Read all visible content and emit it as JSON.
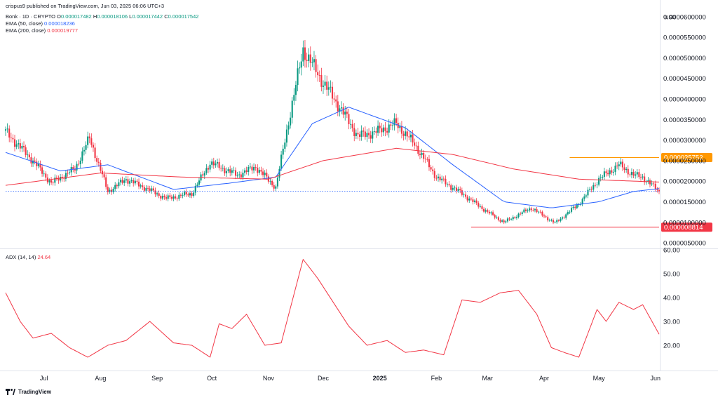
{
  "header": {
    "published": "crispus9 published on TradingView.com, Jun 03, 2025 06:06 UTC+3",
    "symbol": "Bonk · 1D · CRYPTO",
    "open_label": "O",
    "open": "0.000017482",
    "high_label": "H",
    "high": "0.000018106",
    "low_label": "L",
    "low": "0.000017442",
    "close_label": "C",
    "close": "0.000017542",
    "ema50_label": "EMA (50, close)",
    "ema50_value": "0.000018236",
    "ema200_label": "EMA (200, close)",
    "ema200_value": "0.000019777",
    "adx_label": "ADX (14, 14)",
    "adx_value": "24.64",
    "currency": "USD"
  },
  "footer": {
    "logo_text": "TradingView"
  },
  "colors": {
    "up": "#089981",
    "down": "#f23645",
    "ema50": "#2962ff",
    "ema200": "#f23645",
    "adx": "#f23645",
    "resistance": "#ff9800",
    "support": "#f23645",
    "last_price": "#2962ff"
  },
  "chart_data": [
    {
      "type": "candlestick",
      "title": "Bonk · 1D · CRYPTO",
      "ylabel": "USD",
      "ylim": [
        4e-06,
        6.15e-05
      ],
      "yticks": [
        "0.0000050000",
        "0.0000100000",
        "0.0000150000",
        "0.0000200000",
        "0.0000250000",
        "0.0000300000",
        "0.0000350000",
        "0.0000400000",
        "0.0000450000",
        "0.0000500000",
        "0.0000550000",
        "0.0000600000"
      ],
      "xticks": [
        {
          "label": "Jul",
          "date": "2024-07-01"
        },
        {
          "label": "Aug",
          "date": "2024-08-01"
        },
        {
          "label": "Sep",
          "date": "2024-09-01"
        },
        {
          "label": "Oct",
          "date": "2024-10-01"
        },
        {
          "label": "Nov",
          "date": "2024-11-01"
        },
        {
          "label": "Dec",
          "date": "2024-12-01"
        },
        {
          "label": "2025",
          "date": "2025-01-01"
        },
        {
          "label": "Feb",
          "date": "2025-02-01"
        },
        {
          "label": "Mar",
          "date": "2025-03-01"
        },
        {
          "label": "Apr",
          "date": "2025-04-01"
        },
        {
          "label": "May",
          "date": "2025-05-01"
        },
        {
          "label": "Jun",
          "date": "2025-06-01"
        }
      ],
      "price_path": [
        [
          "2024-06-10",
          3.2e-05
        ],
        [
          "2024-06-25",
          2.5e-05
        ],
        [
          "2024-07-05",
          1.95e-05
        ],
        [
          "2024-07-18",
          2.3e-05
        ],
        [
          "2024-07-26",
          3.05e-05
        ],
        [
          "2024-08-05",
          1.75e-05
        ],
        [
          "2024-08-15",
          2.05e-05
        ],
        [
          "2024-08-25",
          1.85e-05
        ],
        [
          "2024-09-06",
          1.58e-05
        ],
        [
          "2024-09-20",
          1.7e-05
        ],
        [
          "2024-09-30",
          2.45e-05
        ],
        [
          "2024-10-15",
          2.15e-05
        ],
        [
          "2024-10-25",
          2.35e-05
        ],
        [
          "2024-11-05",
          1.85e-05
        ],
        [
          "2024-11-12",
          3.45e-05
        ],
        [
          "2024-11-20",
          5.2e-05
        ],
        [
          "2024-12-01",
          4.4e-05
        ],
        [
          "2024-12-10",
          3.8e-05
        ],
        [
          "2024-12-20",
          3.1e-05
        ],
        [
          "2024-12-30",
          3.2e-05
        ],
        [
          "2025-01-10",
          3.4e-05
        ],
        [
          "2025-01-20",
          2.9e-05
        ],
        [
          "2025-02-01",
          2.1e-05
        ],
        [
          "2025-02-15",
          1.7e-05
        ],
        [
          "2025-03-01",
          1.25e-05
        ],
        [
          "2025-03-10",
          1e-05
        ],
        [
          "2025-03-25",
          1.35e-05
        ],
        [
          "2025-04-07",
          9.8e-06
        ],
        [
          "2025-04-20",
          1.45e-05
        ],
        [
          "2025-05-01",
          2.05e-05
        ],
        [
          "2025-05-12",
          2.4e-05
        ],
        [
          "2025-05-20",
          2.15e-05
        ],
        [
          "2025-05-25",
          2.1e-05
        ],
        [
          "2025-06-03",
          1.75e-05
        ]
      ],
      "series": [
        {
          "name": "EMA (50, close)",
          "values": [
            [
              "2024-06-10",
              2.7e-05
            ],
            [
              "2024-07-10",
              2.25e-05
            ],
            [
              "2024-08-05",
              2.4e-05
            ],
            [
              "2024-09-10",
              1.8e-05
            ],
            [
              "2024-10-10",
              1.95e-05
            ],
            [
              "2024-11-05",
              2.1e-05
            ],
            [
              "2024-11-25",
              3.4e-05
            ],
            [
              "2024-12-15",
              3.8e-05
            ],
            [
              "2025-01-15",
              3.3e-05
            ],
            [
              "2025-02-10",
              2.4e-05
            ],
            [
              "2025-03-10",
              1.5e-05
            ],
            [
              "2025-04-05",
              1.35e-05
            ],
            [
              "2025-05-01",
              1.5e-05
            ],
            [
              "2025-05-20",
              1.75e-05
            ],
            [
              "2025-06-03",
              1.82e-05
            ]
          ]
        },
        {
          "name": "EMA (200, close)",
          "values": [
            [
              "2024-06-10",
              1.9e-05
            ],
            [
              "2024-08-01",
              2.2e-05
            ],
            [
              "2024-09-15",
              2.1e-05
            ],
            [
              "2024-11-01",
              2.05e-05
            ],
            [
              "2024-12-01",
              2.5e-05
            ],
            [
              "2025-01-10",
              2.8e-05
            ],
            [
              "2025-02-10",
              2.65e-05
            ],
            [
              "2025-03-15",
              2.3e-05
            ],
            [
              "2025-04-20",
              2.05e-05
            ],
            [
              "2025-06-03",
              1.98e-05
            ]
          ]
        }
      ],
      "annotations": [
        {
          "type": "hline",
          "label": "0.000025752",
          "value": 2.5752e-05,
          "from": "2025-04-15",
          "color": "#ff9800"
        },
        {
          "type": "hline",
          "label": "0.000008814",
          "value": 8.814e-06,
          "from": "2025-02-20",
          "color": "#f23645"
        },
        {
          "type": "hline",
          "style": "dotted",
          "value": 1.7542e-05,
          "from": "2024-06-10",
          "color": "#2962ff"
        }
      ],
      "grid": false,
      "legend": "top-left"
    },
    {
      "type": "line",
      "title": "ADX (14, 14)",
      "ylim": [
        10,
        60
      ],
      "yticks": [
        "20.00",
        "30.00",
        "40.00",
        "50.00",
        "60.00"
      ],
      "series": [
        {
          "name": "ADX (14, 14)",
          "values": [
            [
              "2024-06-10",
              42
            ],
            [
              "2024-06-18",
              30
            ],
            [
              "2024-06-25",
              23
            ],
            [
              "2024-07-05",
              25
            ],
            [
              "2024-07-15",
              19
            ],
            [
              "2024-07-25",
              15
            ],
            [
              "2024-08-05",
              20
            ],
            [
              "2024-08-15",
              22
            ],
            [
              "2024-08-28",
              30
            ],
            [
              "2024-09-10",
              21
            ],
            [
              "2024-09-20",
              20
            ],
            [
              "2024-09-30",
              15
            ],
            [
              "2024-10-05",
              29
            ],
            [
              "2024-10-12",
              27
            ],
            [
              "2024-10-20",
              33
            ],
            [
              "2024-10-30",
              20
            ],
            [
              "2024-11-08",
              21
            ],
            [
              "2024-11-20",
              56
            ],
            [
              "2024-11-28",
              48
            ],
            [
              "2024-12-15",
              28
            ],
            [
              "2024-12-25",
              20
            ],
            [
              "2025-01-05",
              22
            ],
            [
              "2025-01-15",
              17
            ],
            [
              "2025-01-25",
              18
            ],
            [
              "2025-02-05",
              16
            ],
            [
              "2025-02-15",
              39
            ],
            [
              "2025-02-25",
              38
            ],
            [
              "2025-03-08",
              42
            ],
            [
              "2025-03-18",
              43
            ],
            [
              "2025-03-28",
              33
            ],
            [
              "2025-04-05",
              19
            ],
            [
              "2025-04-12",
              17
            ],
            [
              "2025-04-20",
              15
            ],
            [
              "2025-04-30",
              35
            ],
            [
              "2025-05-05",
              30
            ],
            [
              "2025-05-12",
              38
            ],
            [
              "2025-05-20",
              35
            ],
            [
              "2025-05-25",
              37
            ],
            [
              "2025-06-03",
              24.64
            ]
          ]
        }
      ],
      "grid": false
    }
  ]
}
